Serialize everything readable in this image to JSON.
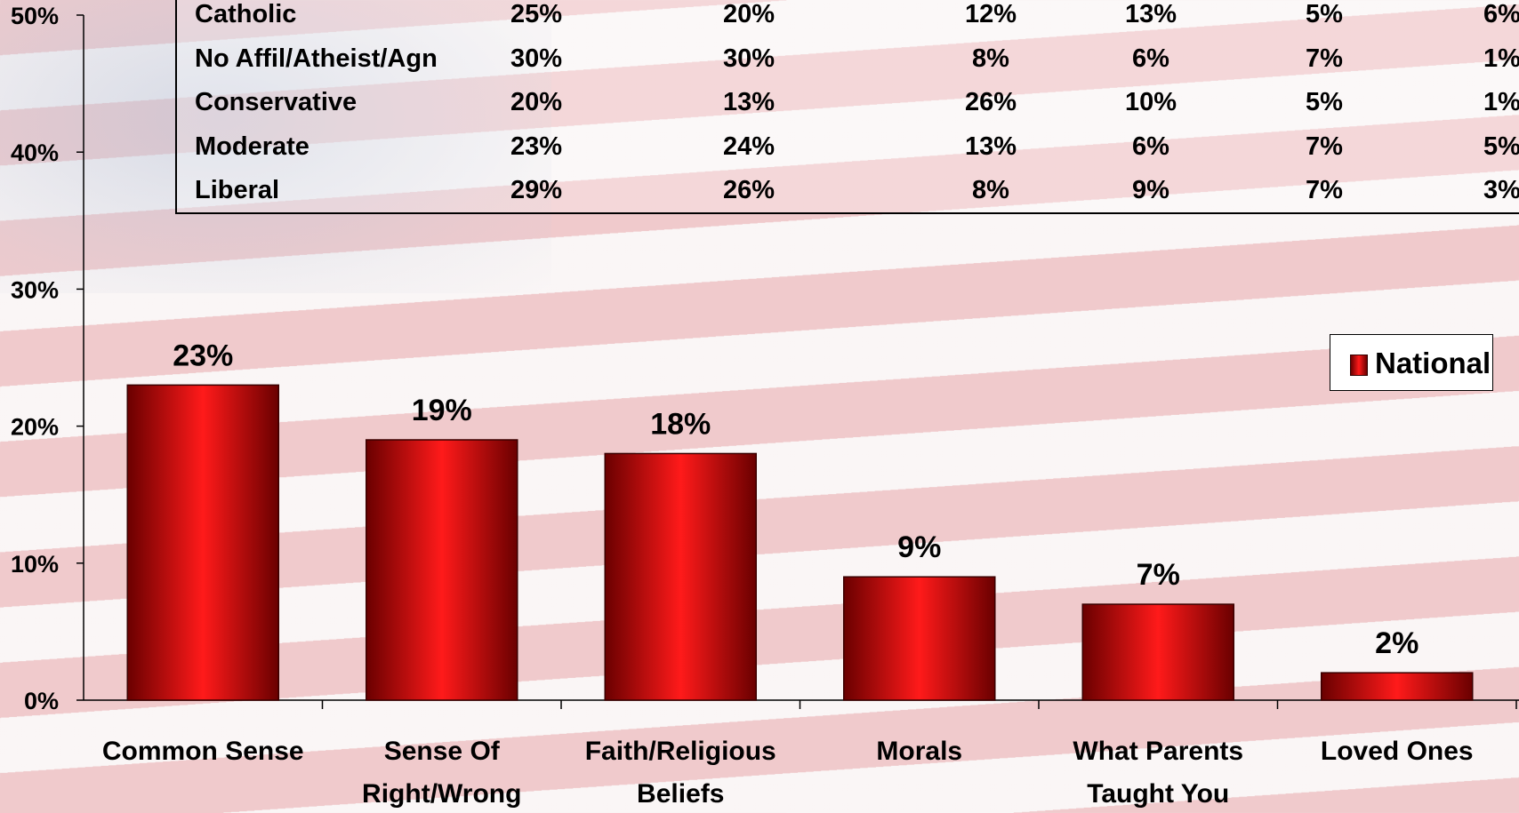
{
  "table": {
    "rows": [
      {
        "label": "Catholic",
        "values": [
          "25%",
          "20%",
          "12%",
          "13%",
          "5%",
          "6%"
        ]
      },
      {
        "label": "No Affil/Atheist/Agn",
        "values": [
          "30%",
          "30%",
          "8%",
          "6%",
          "7%",
          "1%"
        ]
      },
      {
        "label": "Conservative",
        "values": [
          "20%",
          "13%",
          "26%",
          "10%",
          "5%",
          "1%"
        ]
      },
      {
        "label": "Moderate",
        "values": [
          "23%",
          "24%",
          "13%",
          "6%",
          "7%",
          "5%"
        ]
      },
      {
        "label": "Liberal",
        "values": [
          "29%",
          "26%",
          "8%",
          "9%",
          "7%",
          "3%"
        ]
      }
    ]
  },
  "legend": {
    "label": "National"
  },
  "chart_data": {
    "type": "bar",
    "categories": [
      "Common Sense",
      "Sense Of Right/Wrong",
      "Faith/Religious Beliefs",
      "Morals",
      "What  Parents Taught You",
      "Loved Ones"
    ],
    "category_lines": [
      [
        "Common Sense"
      ],
      [
        "Sense Of",
        "Right/Wrong"
      ],
      [
        "Faith/Religious",
        "Beliefs"
      ],
      [
        "Morals"
      ],
      [
        "What  Parents",
        "Taught You"
      ],
      [
        "Loved Ones"
      ]
    ],
    "series": [
      {
        "name": "National",
        "values": [
          23,
          19,
          18,
          9,
          7,
          2
        ]
      }
    ],
    "data_labels": [
      "23%",
      "19%",
      "18%",
      "9%",
      "7%",
      "2%"
    ],
    "ylim": [
      0,
      50
    ],
    "yticks": [
      0,
      10,
      20,
      30,
      40,
      50
    ],
    "ytick_labels": [
      "0%",
      "10%",
      "20%",
      "30%",
      "40%",
      "50%"
    ],
    "bar_color": "#e00000",
    "legend_position": "right"
  }
}
